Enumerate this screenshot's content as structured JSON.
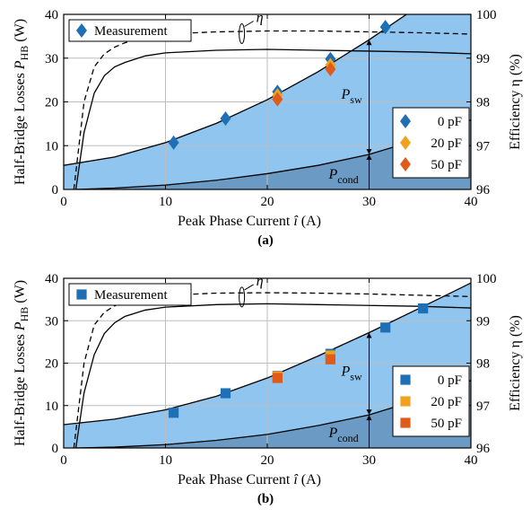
{
  "chart_data": [
    {
      "type": "area",
      "panel_label": "(a)",
      "xlabel": "Peak Phase Current",
      "xlabel_symbol": "î",
      "xlabel_unit": "(A)",
      "ylabel": "Half-Bridge Losses",
      "ylabel_symbol": "P",
      "ylabel_sub": "HB",
      "ylabel_unit": "(W)",
      "y2label": "Efficiency η (%)",
      "xlim": [
        0,
        40
      ],
      "ylim": [
        0,
        40
      ],
      "y2lim": [
        96,
        100
      ],
      "xticks": [
        "0",
        "10",
        "20",
        "30",
        "40"
      ],
      "yticks": [
        "0",
        "10",
        "20",
        "30",
        "40"
      ],
      "y2ticks": [
        "96",
        "97",
        "98",
        "99",
        "100"
      ],
      "grid": true,
      "eta_label": "η",
      "region_labels": {
        "sw": {
          "main": "P",
          "sub": "sw"
        },
        "cond": {
          "main": "P",
          "sub": "cond"
        }
      },
      "total_loss_curve": {
        "x": [
          0,
          5,
          10,
          15,
          20,
          25,
          30,
          35,
          40
        ],
        "y": [
          5.5,
          7.4,
          10.7,
          15.1,
          20.5,
          26.9,
          34.2,
          42.1,
          50.8
        ]
      },
      "conduction_loss_curve": {
        "x": [
          1.2,
          5,
          10,
          15,
          20,
          25,
          30,
          35,
          40
        ],
        "y": [
          0,
          0.3,
          1.0,
          2.1,
          3.6,
          5.5,
          8.0,
          11.5,
          15.9
        ]
      },
      "efficiency_solid": {
        "x": [
          1.2,
          2,
          3,
          4,
          5,
          6,
          8,
          10,
          15,
          20,
          25,
          30,
          35,
          40
        ],
        "y": [
          96.0,
          97.3,
          98.2,
          98.6,
          98.8,
          98.9,
          99.05,
          99.12,
          99.18,
          99.2,
          99.18,
          99.16,
          99.14,
          99.1
        ]
      },
      "efficiency_dashed": {
        "x": [
          1.0,
          2,
          3,
          4,
          5,
          6,
          8,
          10,
          15,
          20,
          25,
          30,
          35,
          40
        ],
        "y": [
          96.0,
          98.0,
          98.8,
          99.1,
          99.25,
          99.35,
          99.48,
          99.55,
          99.6,
          99.62,
          99.62,
          99.6,
          99.58,
          99.55
        ]
      },
      "series": [
        {
          "name": "0 pF",
          "color": "#1f6fb5",
          "marker": "diamond",
          "x": [
            10.8,
            15.9,
            21.0,
            26.2,
            31.6
          ],
          "y": [
            10.7,
            16.2,
            22.3,
            29.8,
            37.1
          ]
        },
        {
          "name": "20 pF",
          "color": "#f0a21e",
          "marker": "diamond",
          "x": [
            21.0,
            26.2
          ],
          "y": [
            21.5,
            28.4
          ]
        },
        {
          "name": "50 pF",
          "color": "#e05a1a",
          "marker": "diamond",
          "x": [
            21.0,
            26.2
          ],
          "y": [
            20.6,
            27.5
          ]
        }
      ],
      "measurement_legend": "Measurement"
    },
    {
      "type": "area",
      "panel_label": "(b)",
      "xlabel": "Peak Phase Current",
      "xlabel_symbol": "î",
      "xlabel_unit": "(A)",
      "ylabel": "Half-Bridge Losses",
      "ylabel_symbol": "P",
      "ylabel_sub": "HB",
      "ylabel_unit": "(W)",
      "y2label": "Efficiency η (%)",
      "xlim": [
        0,
        40
      ],
      "ylim": [
        0,
        40
      ],
      "y2lim": [
        96,
        100
      ],
      "xticks": [
        "0",
        "10",
        "20",
        "30",
        "40"
      ],
      "yticks": [
        "0",
        "10",
        "20",
        "30",
        "40"
      ],
      "y2ticks": [
        "96",
        "97",
        "98",
        "99",
        "100"
      ],
      "grid": true,
      "eta_label": "η",
      "region_labels": {
        "sw": {
          "main": "P",
          "sub": "sw"
        },
        "cond": {
          "main": "P",
          "sub": "cond"
        }
      },
      "total_loss_curve": {
        "x": [
          0,
          5,
          10,
          15,
          20,
          25,
          30,
          35,
          40
        ],
        "y": [
          5.5,
          6.8,
          9.0,
          12.2,
          16.5,
          21.7,
          27.2,
          33.0,
          38.9
        ]
      },
      "conduction_loss_curve": {
        "x": [
          1.2,
          5,
          10,
          15,
          20,
          25,
          30,
          35,
          40
        ],
        "y": [
          0,
          0.2,
          0.8,
          1.8,
          3.2,
          5.3,
          7.8,
          11.5,
          15.9
        ]
      },
      "efficiency_solid": {
        "x": [
          1.2,
          2,
          3,
          4,
          5,
          6,
          8,
          10,
          15,
          20,
          25,
          30,
          35,
          40
        ],
        "y": [
          96.0,
          97.3,
          98.2,
          98.7,
          98.95,
          99.1,
          99.25,
          99.32,
          99.38,
          99.4,
          99.38,
          99.36,
          99.34,
          99.3
        ]
      },
      "efficiency_dashed": {
        "x": [
          1.0,
          2,
          3,
          4,
          5,
          6,
          8,
          10,
          15,
          20,
          25,
          30,
          35,
          40
        ],
        "y": [
          96.0,
          98.0,
          98.9,
          99.2,
          99.35,
          99.45,
          99.55,
          99.6,
          99.65,
          99.66,
          99.65,
          99.63,
          99.6,
          99.57
        ]
      },
      "series": [
        {
          "name": "0 pF",
          "color": "#1f6fb5",
          "marker": "square",
          "x": [
            10.8,
            15.9,
            21.0,
            26.2,
            31.6,
            35.3
          ],
          "y": [
            8.3,
            12.9,
            17.0,
            22.2,
            28.4,
            32.9
          ]
        },
        {
          "name": "20 pF",
          "color": "#f0a21e",
          "marker": "square",
          "x": [
            21.0,
            26.2
          ],
          "y": [
            16.9,
            21.8
          ]
        },
        {
          "name": "50 pF",
          "color": "#e05a1a",
          "marker": "square",
          "x": [
            21.0,
            26.2
          ],
          "y": [
            16.5,
            20.9
          ]
        }
      ],
      "measurement_legend": "Measurement"
    }
  ]
}
